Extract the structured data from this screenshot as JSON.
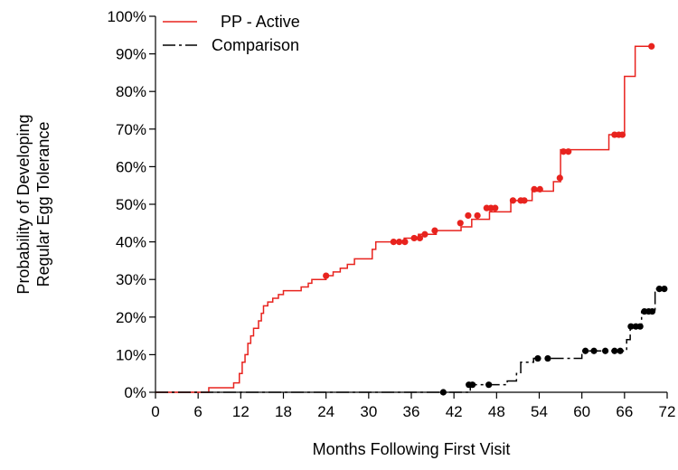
{
  "chart_data": {
    "type": "line",
    "title": "",
    "xlabel": "Months Following First Visit",
    "ylabel": [
      "Probability of Developing",
      "Regular Egg Tolerance"
    ],
    "xlim": [
      0,
      72
    ],
    "ylim": [
      0,
      100
    ],
    "x_ticks": [
      0,
      6,
      12,
      18,
      24,
      30,
      36,
      42,
      48,
      54,
      60,
      66,
      72
    ],
    "y_ticks": [
      0,
      10,
      20,
      30,
      40,
      50,
      60,
      70,
      80,
      90,
      100
    ],
    "y_tick_labels": [
      "0%",
      "10%",
      "20%",
      "30%",
      "40%",
      "50%",
      "60%",
      "70%",
      "80%",
      "90%",
      "100%"
    ],
    "grid": false,
    "legend_position": "top-left",
    "series": [
      {
        "name": "PP - Active",
        "color": "#e8231e",
        "dash": "solid",
        "steps": [
          [
            0,
            0
          ],
          [
            7.5,
            1.2
          ],
          [
            11,
            2.5
          ],
          [
            11.8,
            5
          ],
          [
            12.2,
            8
          ],
          [
            12.6,
            10
          ],
          [
            13,
            13
          ],
          [
            13.4,
            15
          ],
          [
            13.8,
            17
          ],
          [
            14.5,
            19
          ],
          [
            14.9,
            21
          ],
          [
            15.2,
            23
          ],
          [
            15.8,
            24
          ],
          [
            16.5,
            25
          ],
          [
            17.3,
            26
          ],
          [
            18,
            27
          ],
          [
            20.5,
            28
          ],
          [
            21.5,
            29
          ],
          [
            22,
            30
          ],
          [
            24,
            31
          ],
          [
            25,
            32
          ],
          [
            26,
            33
          ],
          [
            27,
            34
          ],
          [
            28,
            35.5
          ],
          [
            30.5,
            38
          ],
          [
            31,
            40
          ],
          [
            35,
            41
          ],
          [
            37,
            42
          ],
          [
            39.5,
            43
          ],
          [
            43,
            44
          ],
          [
            44.5,
            46
          ],
          [
            47,
            48
          ],
          [
            50,
            51
          ],
          [
            53,
            53.5
          ],
          [
            56,
            56
          ],
          [
            57,
            64.5
          ],
          [
            58,
            64.5
          ],
          [
            63.8,
            68.5
          ],
          [
            66,
            84
          ],
          [
            67.5,
            92
          ],
          [
            70,
            92
          ]
        ],
        "censored": [
          [
            24,
            31
          ],
          [
            33.5,
            40
          ],
          [
            34.3,
            40
          ],
          [
            35.1,
            40
          ],
          [
            36.4,
            41
          ],
          [
            37.2,
            41
          ],
          [
            37.9,
            42
          ],
          [
            39.3,
            43
          ],
          [
            42.9,
            45
          ],
          [
            44,
            47
          ],
          [
            45.3,
            47
          ],
          [
            46.6,
            49
          ],
          [
            47.2,
            49
          ],
          [
            47.8,
            49
          ],
          [
            50.3,
            51
          ],
          [
            51.4,
            51
          ],
          [
            51.9,
            51
          ],
          [
            53.3,
            54
          ],
          [
            54.1,
            54
          ],
          [
            56.9,
            57
          ],
          [
            57.4,
            64
          ],
          [
            58.1,
            64
          ],
          [
            64.6,
            68.5
          ],
          [
            65.2,
            68.5
          ],
          [
            65.7,
            68.5
          ],
          [
            69.8,
            92
          ]
        ]
      },
      {
        "name": "Comparison",
        "color": "#000000",
        "dash": "dashed",
        "steps": [
          [
            0,
            0
          ],
          [
            44.3,
            2
          ],
          [
            45.5,
            2
          ],
          [
            47.5,
            2
          ],
          [
            49.5,
            3
          ],
          [
            50.8,
            5
          ],
          [
            51.4,
            8
          ],
          [
            52.5,
            8
          ],
          [
            53.2,
            9
          ],
          [
            59.5,
            9
          ],
          [
            60,
            11
          ],
          [
            63.5,
            11
          ],
          [
            65.2,
            11
          ],
          [
            66.3,
            14
          ],
          [
            66.8,
            17.5
          ],
          [
            68.4,
            21.5
          ],
          [
            70.3,
            27.5
          ],
          [
            71.7,
            27.5
          ]
        ],
        "censored": [
          [
            40.5,
            0
          ],
          [
            44.1,
            2
          ],
          [
            44.6,
            2
          ],
          [
            46.9,
            2
          ],
          [
            53.8,
            9
          ],
          [
            55.2,
            9
          ],
          [
            60.5,
            11
          ],
          [
            61.7,
            11
          ],
          [
            63.3,
            11
          ],
          [
            64.6,
            11
          ],
          [
            65.4,
            11
          ],
          [
            66.9,
            17.5
          ],
          [
            67.6,
            17.5
          ],
          [
            68.2,
            17.5
          ],
          [
            68.8,
            21.5
          ],
          [
            69.4,
            21.5
          ],
          [
            69.9,
            21.5
          ],
          [
            70.9,
            27.5
          ],
          [
            71.6,
            27.5
          ]
        ]
      }
    ]
  }
}
